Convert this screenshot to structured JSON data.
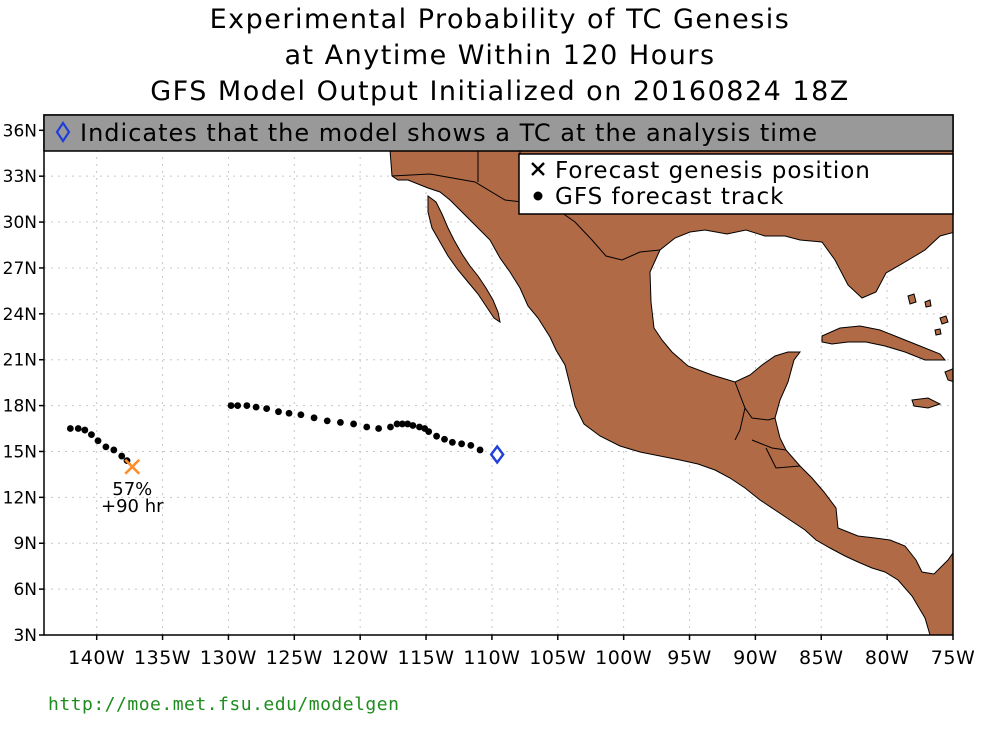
{
  "title": {
    "line1": "Experimental Probability of TC Genesis",
    "line2": "at Anytime Within 120 Hours",
    "line3": "GFS Model Output Initialized on 20160824 18Z"
  },
  "banner": {
    "text": "Indicates that the model shows a TC at the analysis time",
    "icon": "blue-diamond-icon"
  },
  "legend": {
    "genesis_label": "Forecast genesis position",
    "track_label": "GFS forecast track"
  },
  "lat_ticks": [
    "36N",
    "33N",
    "30N",
    "27N",
    "24N",
    "21N",
    "18N",
    "15N",
    "12N",
    "9N",
    "6N",
    "3N"
  ],
  "lon_ticks": [
    "140W",
    "135W",
    "130W",
    "125W",
    "120W",
    "115W",
    "110W",
    "105W",
    "100W",
    "95W",
    "90W",
    "85W",
    "80W",
    "75W"
  ],
  "genesis": {
    "probability": "57%",
    "lead_time": "+90 hr",
    "lon": -137.3,
    "lat": 14.0
  },
  "analysis_tc": {
    "lon": -109.6,
    "lat": 14.8
  },
  "colors": {
    "land": "#b06a45",
    "banner": "#999999",
    "genesis_marker": "#ff8c2a",
    "analysis_marker": "#1f3fdb",
    "url": "#1e8c1e"
  },
  "source_url": "http://moe.met.fsu.edu/modelgen",
  "track": [
    [
      -129.8,
      18.0
    ],
    [
      -129.3,
      18.0
    ],
    [
      -128.6,
      18.0
    ],
    [
      -127.9,
      17.9
    ],
    [
      -127.1,
      17.8
    ],
    [
      -126.2,
      17.6
    ],
    [
      -125.4,
      17.5
    ],
    [
      -124.5,
      17.4
    ],
    [
      -123.5,
      17.2
    ],
    [
      -122.5,
      17.0
    ],
    [
      -121.5,
      16.9
    ],
    [
      -120.5,
      16.8
    ],
    [
      -119.5,
      16.6
    ],
    [
      -118.6,
      16.5
    ],
    [
      -117.7,
      16.6
    ],
    [
      -117.2,
      16.8
    ],
    [
      -116.8,
      16.8
    ],
    [
      -116.4,
      16.8
    ],
    [
      -116.0,
      16.7
    ],
    [
      -115.5,
      16.6
    ],
    [
      -115.1,
      16.5
    ],
    [
      -114.8,
      16.3
    ],
    [
      -114.2,
      16.0
    ],
    [
      -113.6,
      15.8
    ],
    [
      -113.0,
      15.6
    ],
    [
      -112.3,
      15.5
    ],
    [
      -111.6,
      15.4
    ],
    [
      -110.9,
      15.1
    ],
    [
      -142.0,
      16.5
    ],
    [
      -141.4,
      16.5
    ],
    [
      -140.9,
      16.4
    ],
    [
      -140.4,
      16.1
    ],
    [
      -139.9,
      15.7
    ],
    [
      -139.3,
      15.3
    ],
    [
      -138.7,
      15.1
    ],
    [
      -138.1,
      14.7
    ],
    [
      -137.7,
      14.4
    ]
  ]
}
